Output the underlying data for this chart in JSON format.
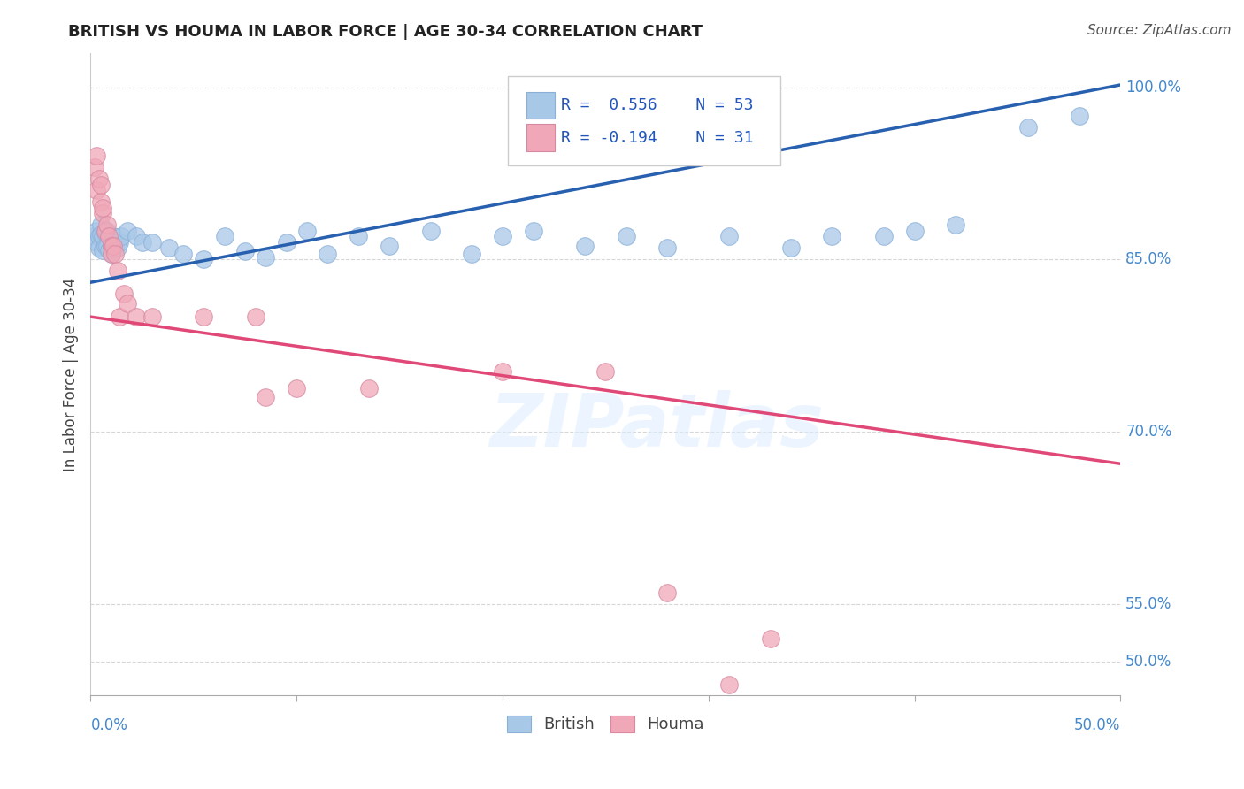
{
  "title": "BRITISH VS HOUMA IN LABOR FORCE | AGE 30-34 CORRELATION CHART",
  "source": "Source: ZipAtlas.com",
  "ylabel": "In Labor Force | Age 30-34",
  "xlim": [
    0.0,
    0.5
  ],
  "ylim": [
    0.47,
    1.03
  ],
  "british_R": 0.556,
  "british_N": 53,
  "houma_R": -0.194,
  "houma_N": 31,
  "british_color": "#a8c8e8",
  "houma_color": "#f0a8b8",
  "british_line_color": "#2860b0",
  "houma_line_color": "#e04878",
  "watermark": "ZIPatlas",
  "ytick_vals": [
    0.5,
    0.55,
    0.7,
    0.85,
    1.0
  ],
  "xtick_vals": [
    0.0,
    0.1,
    0.2,
    0.3,
    0.4,
    0.5
  ],
  "british_x": [
    0.002,
    0.003,
    0.003,
    0.004,
    0.004,
    0.005,
    0.005,
    0.006,
    0.006,
    0.007,
    0.007,
    0.008,
    0.008,
    0.009,
    0.009,
    0.01,
    0.01,
    0.011,
    0.011,
    0.012,
    0.013,
    0.014,
    0.015,
    0.018,
    0.022,
    0.025,
    0.03,
    0.038,
    0.045,
    0.055,
    0.065,
    0.075,
    0.085,
    0.095,
    0.105,
    0.115,
    0.13,
    0.145,
    0.165,
    0.185,
    0.2,
    0.215,
    0.24,
    0.26,
    0.28,
    0.31,
    0.34,
    0.36,
    0.385,
    0.4,
    0.42,
    0.455,
    0.48
  ],
  "british_y": [
    0.87,
    0.875,
    0.865,
    0.87,
    0.86,
    0.88,
    0.872,
    0.87,
    0.858,
    0.873,
    0.862,
    0.875,
    0.862,
    0.87,
    0.858,
    0.862,
    0.855,
    0.86,
    0.87,
    0.862,
    0.86,
    0.865,
    0.87,
    0.875,
    0.87,
    0.865,
    0.865,
    0.86,
    0.855,
    0.85,
    0.87,
    0.857,
    0.852,
    0.865,
    0.875,
    0.855,
    0.87,
    0.862,
    0.875,
    0.855,
    0.87,
    0.875,
    0.862,
    0.87,
    0.86,
    0.87,
    0.86,
    0.87,
    0.87,
    0.875,
    0.88,
    0.965,
    0.975
  ],
  "houma_x": [
    0.002,
    0.003,
    0.003,
    0.004,
    0.005,
    0.005,
    0.006,
    0.006,
    0.007,
    0.008,
    0.009,
    0.01,
    0.01,
    0.011,
    0.012,
    0.013,
    0.014,
    0.016,
    0.018,
    0.022,
    0.03,
    0.055,
    0.08,
    0.085,
    0.1,
    0.135,
    0.2,
    0.25,
    0.28,
    0.31,
    0.33
  ],
  "houma_y": [
    0.93,
    0.94,
    0.91,
    0.92,
    0.9,
    0.915,
    0.89,
    0.895,
    0.875,
    0.88,
    0.87,
    0.862,
    0.855,
    0.862,
    0.855,
    0.84,
    0.8,
    0.82,
    0.812,
    0.8,
    0.8,
    0.8,
    0.8,
    0.73,
    0.738,
    0.738,
    0.752,
    0.752,
    0.56,
    0.48,
    0.52
  ]
}
